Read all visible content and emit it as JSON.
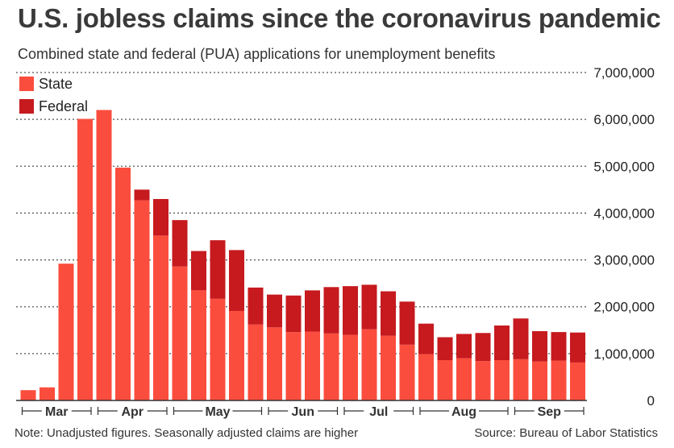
{
  "title": "U.S. jobless claims since the coronavirus pandemic",
  "subtitle": "Combined state and federal (PUA) applications for unemployment benefits",
  "note": "Note: Unadjusted figures. Seasonally adjusted claims are higher",
  "source": "Source: Bureau of Labor Statistics",
  "colors": {
    "state": "#fb4d3d",
    "federal": "#c61a1e",
    "grid": "#555555",
    "axis": "#333333"
  },
  "chart_data": {
    "type": "bar",
    "stacked": true,
    "y_ticks": [
      "0",
      "1,000,000",
      "2,000,000",
      "3,000,000",
      "4,000,000",
      "5,000,000",
      "6,000,000",
      "7,000,000"
    ],
    "ylim": [
      0,
      7000000
    ],
    "grid": true,
    "legend_position": "top-left",
    "month_labels": [
      "Mar",
      "Apr",
      "May",
      "Jun",
      "Jul",
      "Aug",
      "Sep"
    ],
    "month_week_counts": [
      4,
      4,
      5,
      4,
      4,
      5,
      4
    ],
    "series": [
      {
        "name": "State",
        "values": [
          220000,
          280000,
          2920000,
          6010000,
          6200000,
          4970000,
          4270000,
          3520000,
          2860000,
          2350000,
          2170000,
          1910000,
          1620000,
          1560000,
          1460000,
          1470000,
          1430000,
          1400000,
          1520000,
          1380000,
          1190000,
          990000,
          860000,
          900000,
          840000,
          860000,
          880000,
          830000,
          850000,
          810000
        ]
      },
      {
        "name": "Federal",
        "values": [
          0,
          0,
          0,
          0,
          0,
          0,
          230000,
          780000,
          990000,
          840000,
          1250000,
          1300000,
          790000,
          700000,
          780000,
          880000,
          990000,
          1040000,
          950000,
          950000,
          920000,
          650000,
          490000,
          520000,
          600000,
          740000,
          870000,
          650000,
          610000,
          640000
        ]
      }
    ]
  }
}
